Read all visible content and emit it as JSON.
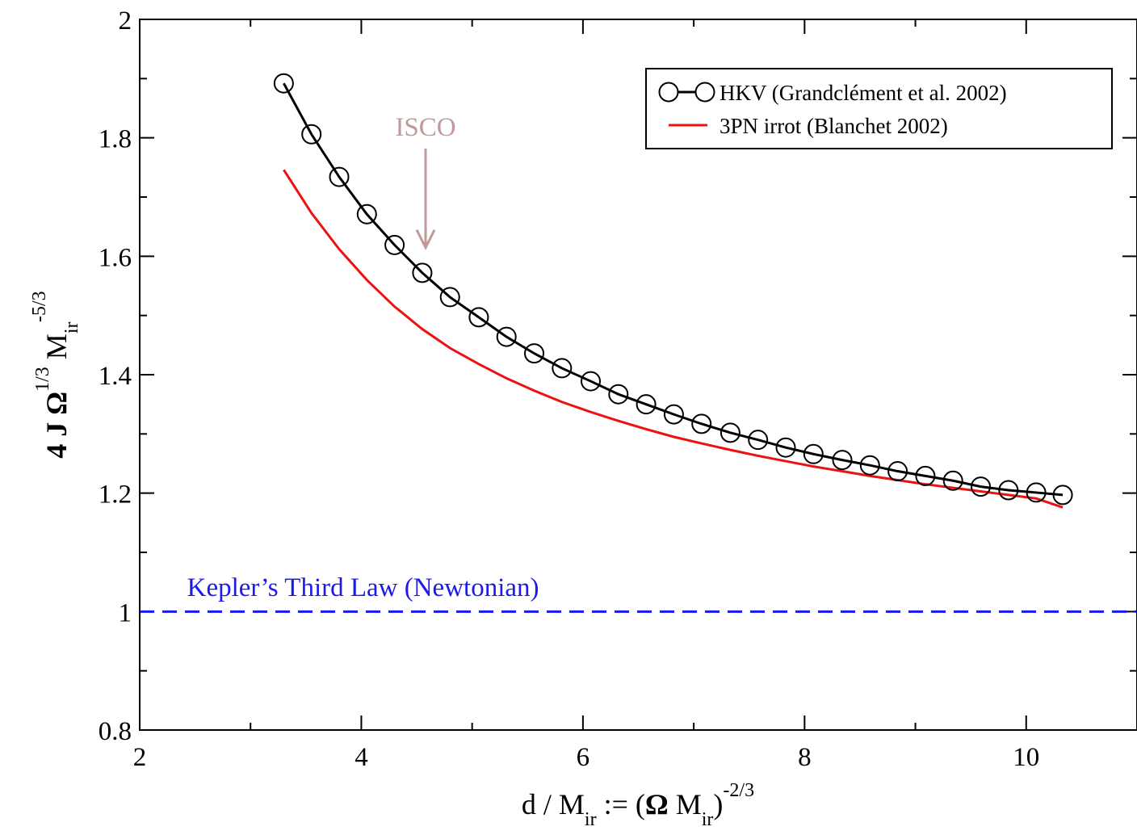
{
  "chart_data": {
    "type": "line",
    "xlabel": {
      "parts": [
        "d / M",
        "ir",
        " :=  (",
        "Ω",
        " M",
        "ir",
        ")",
        "-2/3"
      ]
    },
    "ylabel": {
      "parts": [
        "4 J ",
        "Ω",
        "1/3",
        " M",
        "ir",
        "-5/3"
      ]
    },
    "xlim": [
      2,
      11
    ],
    "ylim": [
      0.8,
      2
    ],
    "x_ticks": [
      2,
      4,
      6,
      8,
      10
    ],
    "x_tick_labels": [
      "2",
      "4",
      "6",
      "8",
      "10"
    ],
    "y_ticks": [
      0.8,
      1,
      1.2,
      1.4,
      1.6,
      1.8,
      2
    ],
    "y_tick_labels": [
      "0.8",
      "1",
      "1.2",
      "1.4",
      "1.6",
      "1.8",
      "2"
    ],
    "legend_position": "top-right",
    "series": [
      {
        "name": "HKV (Grandclément et al. 2002)",
        "color": "#000000",
        "marker": "open-circle",
        "x": [
          3.3,
          3.55,
          3.8,
          4.05,
          4.3,
          4.55,
          4.8,
          5.06,
          5.31,
          5.56,
          5.81,
          6.07,
          6.32,
          6.57,
          6.82,
          7.07,
          7.33,
          7.58,
          7.83,
          8.08,
          8.34,
          8.59,
          8.84,
          9.09,
          9.34,
          9.59,
          9.84,
          10.09,
          10.33
        ],
        "y": [
          1.892,
          1.806,
          1.734,
          1.671,
          1.619,
          1.572,
          1.531,
          1.497,
          1.464,
          1.436,
          1.411,
          1.389,
          1.367,
          1.35,
          1.333,
          1.317,
          1.302,
          1.29,
          1.277,
          1.266,
          1.256,
          1.247,
          1.237,
          1.229,
          1.221,
          1.211,
          1.205,
          1.201,
          1.197
        ]
      },
      {
        "name": "3PN irrot (Blanchet 2002)",
        "color": "#ee1111",
        "marker": "none",
        "x": [
          3.3,
          3.55,
          3.8,
          4.05,
          4.3,
          4.55,
          4.8,
          5.06,
          5.31,
          5.56,
          5.81,
          6.07,
          6.32,
          6.57,
          6.82,
          7.07,
          7.33,
          7.58,
          7.83,
          8.08,
          8.34,
          8.59,
          8.84,
          9.09,
          9.34,
          9.59,
          9.84,
          10.09,
          10.33
        ],
        "y": [
          1.746,
          1.673,
          1.612,
          1.56,
          1.515,
          1.477,
          1.445,
          1.418,
          1.394,
          1.373,
          1.354,
          1.337,
          1.322,
          1.308,
          1.295,
          1.284,
          1.273,
          1.263,
          1.254,
          1.245,
          1.237,
          1.229,
          1.222,
          1.215,
          1.209,
          1.203,
          1.197,
          1.191,
          1.176
        ]
      },
      {
        "name": "Kepler’s Third Law (Newtonian)",
        "color": "#1a1aee",
        "dash": "dashed",
        "x": [
          2,
          11
        ],
        "y": [
          1,
          1
        ]
      }
    ],
    "annotations": [
      {
        "text": "ISCO",
        "color": "#c09a9a",
        "x": 4.58,
        "y": 1.82,
        "arrow_to": [
          4.58,
          1.62
        ]
      },
      {
        "text": "Kepler’s Third Law (Newtonian)",
        "color": "#1a1aee",
        "x": 2.5,
        "y": 1.04
      }
    ]
  }
}
